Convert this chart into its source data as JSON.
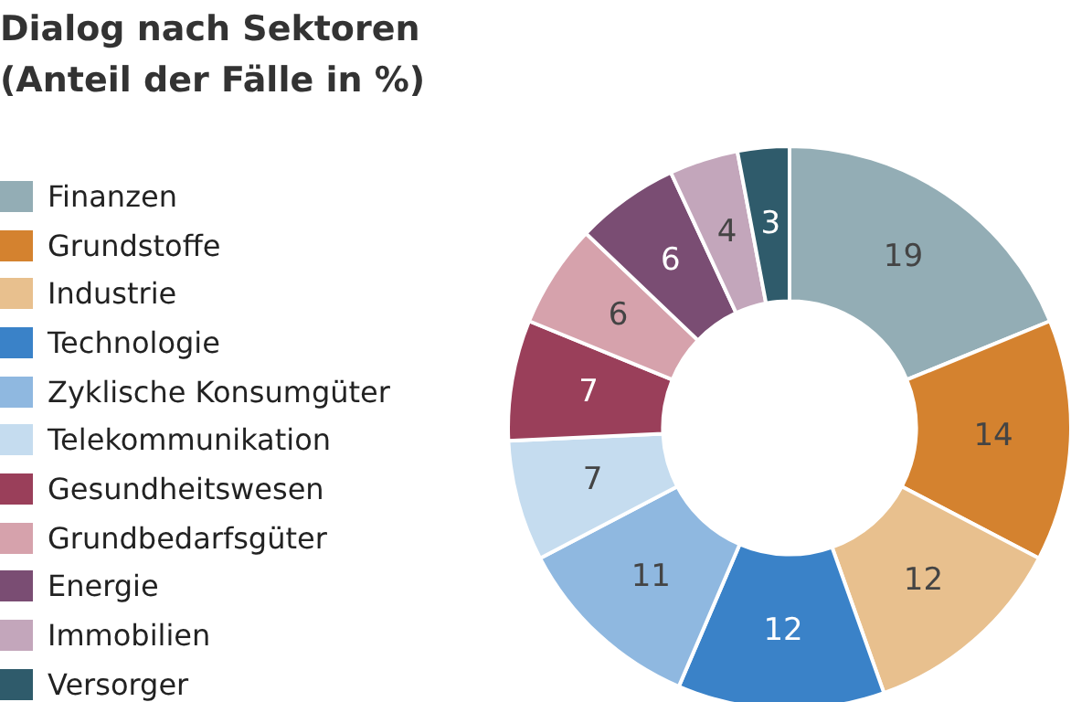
{
  "chart_data": {
    "type": "donut",
    "title": "Dialog nach Sektoren (Anteil der Fälle in %)",
    "categories": [
      "Finanzen",
      "Grundstoffe",
      "Industrie",
      "Technologie",
      "Zyklische Konsumgüter",
      "Telekommunikation",
      "Gesundheitswesen",
      "Grundbedarfsgüter",
      "Energie",
      "Immobilien",
      "Versorger"
    ],
    "values": [
      19,
      14,
      12,
      12,
      11,
      7,
      7,
      6,
      6,
      4,
      3
    ],
    "colors": [
      "#93adb5",
      "#d4822f",
      "#e8c08e",
      "#3a82c8",
      "#8fb8e0",
      "#c5dcef",
      "#9a3f5a",
      "#d6a2ac",
      "#7a4d73",
      "#c3a6bb",
      "#2f5b6b"
    ],
    "data_labels": true,
    "legend": "left"
  }
}
